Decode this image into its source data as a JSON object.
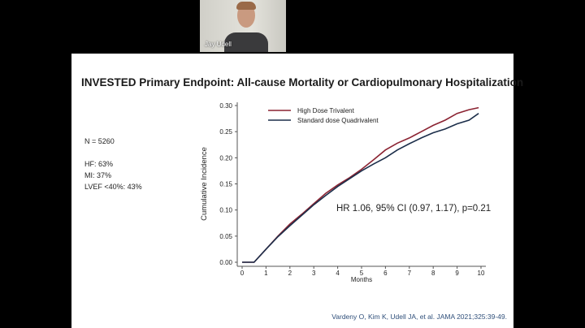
{
  "participant": {
    "name": "Jay Udell"
  },
  "slide": {
    "title": "INVESTED Primary Endpoint: All-cause Mortality or Cardiopulmonary Hospitalization",
    "stats": [
      "N = 5260",
      "",
      "HF: 63%",
      "MI: 37%",
      "LVEF <40%: 43%"
    ],
    "citation": "Vardeny O, Kim K, Udell JA, et al. JAMA 2021;325:39-49."
  },
  "chart_data": {
    "type": "line",
    "xlabel": "Months",
    "ylabel": "Cumulative Incidence",
    "xlim": [
      0,
      10
    ],
    "ylim": [
      0,
      0.3
    ],
    "xticks": [
      "0",
      "1",
      "2",
      "3",
      "4",
      "5",
      "6",
      "7",
      "8",
      "9",
      "10"
    ],
    "yticks": [
      "0.00",
      "0.05",
      "0.10",
      "0.15",
      "0.20",
      "0.25",
      "0.30"
    ],
    "grid": false,
    "legend_placement": "top-left",
    "annotation": "HR 1.06, 95% CI (0.97, 1.17), p=0.21",
    "x": [
      0,
      0.5,
      1,
      1.5,
      2,
      2.5,
      3,
      3.5,
      4,
      4.5,
      5,
      5.5,
      6,
      6.5,
      7,
      7.5,
      8,
      8.5,
      9,
      9.5,
      9.9
    ],
    "series": [
      {
        "name": "High Dose Trivalent",
        "color": "#8b2332",
        "values": [
          0,
          0,
          0.025,
          0.05,
          0.073,
          0.092,
          0.112,
          0.132,
          0.148,
          0.162,
          0.178,
          0.196,
          0.215,
          0.228,
          0.238,
          0.25,
          0.262,
          0.272,
          0.285,
          0.292,
          0.296
        ]
      },
      {
        "name": "Standard dose Quadrivalent",
        "color": "#1c2e4a",
        "values": [
          0,
          0,
          0.025,
          0.049,
          0.07,
          0.09,
          0.11,
          0.128,
          0.145,
          0.16,
          0.175,
          0.188,
          0.2,
          0.215,
          0.227,
          0.238,
          0.248,
          0.255,
          0.265,
          0.272,
          0.285
        ]
      }
    ]
  }
}
